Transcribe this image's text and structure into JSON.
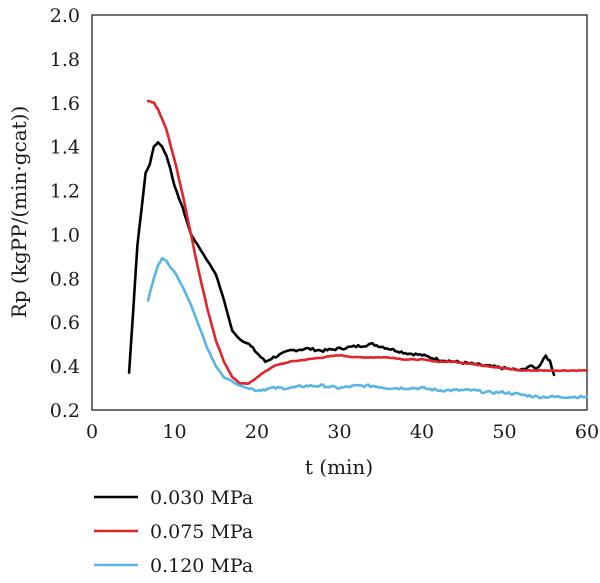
{
  "chart_data": {
    "type": "line",
    "xlabel": "t (min)",
    "ylabel": "Rp (kgPP/(min·gcat))",
    "xlim": [
      0,
      60
    ],
    "ylim": [
      0.2,
      2.0
    ],
    "x_ticks": [
      "0",
      "10",
      "20",
      "30",
      "40",
      "50",
      "60"
    ],
    "y_ticks": [
      "0.2",
      "0.4",
      "0.6",
      "0.8",
      "1.0",
      "1.2",
      "1.4",
      "1.6",
      "1.8",
      "2.0"
    ],
    "grid": false,
    "legend_position": "bottom-left, below plot",
    "series": [
      {
        "name": "0.030 MPa",
        "color": "#000000",
        "x": [
          4.5,
          5.5,
          6.5,
          7.0,
          7.5,
          8.0,
          8.5,
          9.0,
          9.5,
          10.0,
          11.0,
          12.0,
          13.0,
          14.0,
          15.0,
          16.0,
          17.0,
          18.0,
          19.0,
          20.0,
          21.0,
          22.0,
          24.0,
          26.0,
          28.0,
          30.0,
          32.0,
          34.0,
          36.0,
          38.0,
          40.0,
          42.0,
          44.0,
          46.0,
          48.0,
          50.0,
          52.0,
          53.0,
          54.0,
          55.0,
          55.5,
          56.0
        ],
        "y": [
          0.37,
          0.95,
          1.28,
          1.32,
          1.4,
          1.42,
          1.4,
          1.36,
          1.3,
          1.22,
          1.12,
          1.0,
          0.94,
          0.88,
          0.82,
          0.7,
          0.56,
          0.52,
          0.5,
          0.46,
          0.42,
          0.44,
          0.47,
          0.48,
          0.47,
          0.48,
          0.49,
          0.5,
          0.48,
          0.46,
          0.45,
          0.43,
          0.42,
          0.41,
          0.4,
          0.39,
          0.38,
          0.4,
          0.39,
          0.45,
          0.42,
          0.36
        ]
      },
      {
        "name": "0.075 MPa",
        "color": "#e3232a",
        "x": [
          6.8,
          7.5,
          8.0,
          9.0,
          10.0,
          11.0,
          12.0,
          13.0,
          14.0,
          15.0,
          16.0,
          17.0,
          18.0,
          19.0,
          20.0,
          22.0,
          24.0,
          26.0,
          28.0,
          30.0,
          32.0,
          34.0,
          36.0,
          38.0,
          40.0,
          42.0,
          44.0,
          46.0,
          48.0,
          50.0,
          52.0,
          54.0,
          56.0,
          58.0,
          60.0
        ],
        "y": [
          1.61,
          1.6,
          1.57,
          1.48,
          1.34,
          1.18,
          1.0,
          0.82,
          0.66,
          0.52,
          0.42,
          0.35,
          0.32,
          0.32,
          0.35,
          0.4,
          0.42,
          0.43,
          0.44,
          0.45,
          0.44,
          0.44,
          0.44,
          0.43,
          0.43,
          0.42,
          0.42,
          0.41,
          0.4,
          0.39,
          0.38,
          0.38,
          0.38,
          0.38,
          0.38
        ]
      },
      {
        "name": "0.120 MPa",
        "color": "#5ab4e5",
        "x": [
          6.8,
          7.5,
          8.0,
          8.5,
          9.0,
          9.5,
          10.0,
          11.0,
          12.0,
          13.0,
          14.0,
          15.0,
          16.0,
          17.0,
          18.0,
          19.0,
          20.0,
          22.0,
          24.0,
          26.0,
          28.0,
          30.0,
          32.0,
          34.0,
          36.0,
          38.0,
          40.0,
          42.0,
          44.0,
          46.0,
          48.0,
          50.0,
          52.0,
          54.0,
          56.0,
          58.0,
          60.0
        ],
        "y": [
          0.7,
          0.8,
          0.86,
          0.89,
          0.88,
          0.85,
          0.83,
          0.76,
          0.68,
          0.58,
          0.48,
          0.4,
          0.35,
          0.33,
          0.31,
          0.3,
          0.29,
          0.3,
          0.3,
          0.31,
          0.31,
          0.3,
          0.31,
          0.31,
          0.3,
          0.3,
          0.3,
          0.29,
          0.29,
          0.29,
          0.28,
          0.28,
          0.27,
          0.26,
          0.26,
          0.26,
          0.26
        ]
      }
    ]
  }
}
